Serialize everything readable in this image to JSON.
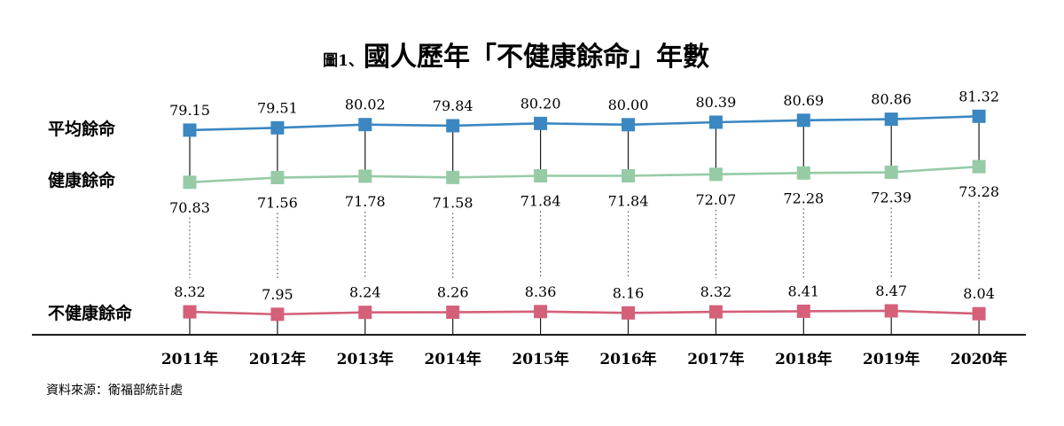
{
  "chart_data": {
    "type": "line",
    "title_prefix": "圖1、",
    "title": "國人歷年「不健康餘命」年數",
    "categories": [
      "2011年",
      "2012年",
      "2013年",
      "2014年",
      "2015年",
      "2016年",
      "2017年",
      "2018年",
      "2019年",
      "2020年"
    ],
    "series": [
      {
        "name": "平均餘命",
        "values": [
          79.15,
          79.51,
          80.02,
          79.84,
          80.2,
          80.0,
          80.39,
          80.69,
          80.86,
          81.32
        ],
        "labels": [
          "79.15",
          "79.51",
          "80.02",
          "79.84",
          "80.20",
          "80.00",
          "80.39",
          "80.69",
          "80.86",
          "81.32"
        ],
        "color": "#3a87c2"
      },
      {
        "name": "健康餘命",
        "values": [
          70.83,
          71.56,
          71.78,
          71.58,
          71.84,
          71.84,
          72.07,
          72.28,
          72.39,
          73.28
        ],
        "labels": [
          "70.83",
          "71.56",
          "71.78",
          "71.58",
          "71.84",
          "71.84",
          "72.07",
          "72.28",
          "72.39",
          "73.28"
        ],
        "color": "#96cba6"
      },
      {
        "name": "不健康餘命",
        "values": [
          8.32,
          7.95,
          8.24,
          8.26,
          8.36,
          8.16,
          8.32,
          8.41,
          8.47,
          8.04
        ],
        "labels": [
          "8.32",
          "7.95",
          "8.24",
          "8.26",
          "8.36",
          "8.16",
          "8.32",
          "8.41",
          "8.47",
          "8.04"
        ],
        "color": "#d4607a"
      }
    ],
    "grid": false,
    "source": "資料來源：衛福部統計處"
  }
}
